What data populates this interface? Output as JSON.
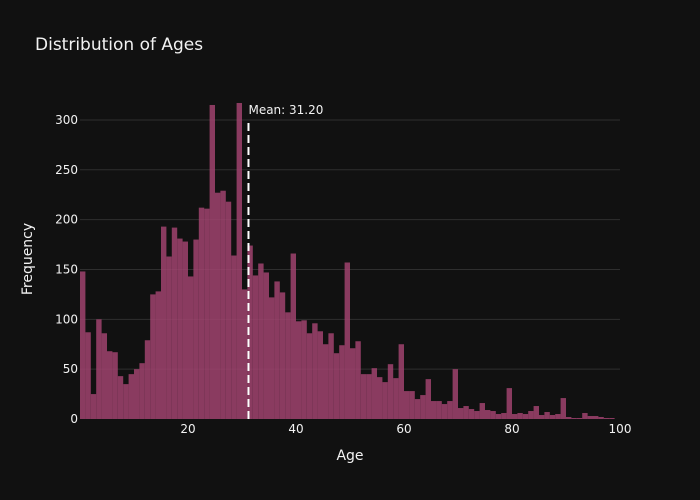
{
  "chart_data": {
    "type": "bar",
    "title": "Distribution of Ages",
    "xlabel": "Age",
    "ylabel": "Frequency",
    "xlim": [
      0,
      100
    ],
    "ylim": [
      0,
      320
    ],
    "xticks": [
      20,
      40,
      60,
      80,
      100
    ],
    "yticks": [
      0,
      50,
      100,
      150,
      200,
      250,
      300
    ],
    "grid": true,
    "bar_color": "#a0436f",
    "bin_width": 1,
    "bin_start": 0,
    "values": [
      148,
      87,
      25,
      100,
      86,
      68,
      67,
      43,
      35,
      45,
      50,
      56,
      79,
      125,
      128,
      193,
      163,
      192,
      181,
      178,
      143,
      180,
      212,
      211,
      315,
      227,
      229,
      218,
      164,
      317,
      130,
      174,
      144,
      156,
      147,
      122,
      138,
      127,
      107,
      166,
      98,
      99,
      86,
      96,
      88,
      75,
      86,
      66,
      74,
      157,
      71,
      78,
      45,
      45,
      51,
      42,
      37,
      55,
      41,
      75,
      28,
      28,
      20,
      24,
      40,
      18,
      18,
      15,
      18,
      50,
      11,
      13,
      10,
      8,
      16,
      9,
      8,
      5,
      6,
      31,
      5,
      6,
      5,
      8,
      13,
      4,
      7,
      4,
      5,
      21,
      2,
      1,
      1,
      6,
      3,
      3,
      2,
      1,
      1,
      0
    ],
    "mean_line": {
      "value": 31.2,
      "label": "Mean: 31.20",
      "color": "#ffffff",
      "style": "dashed"
    }
  }
}
